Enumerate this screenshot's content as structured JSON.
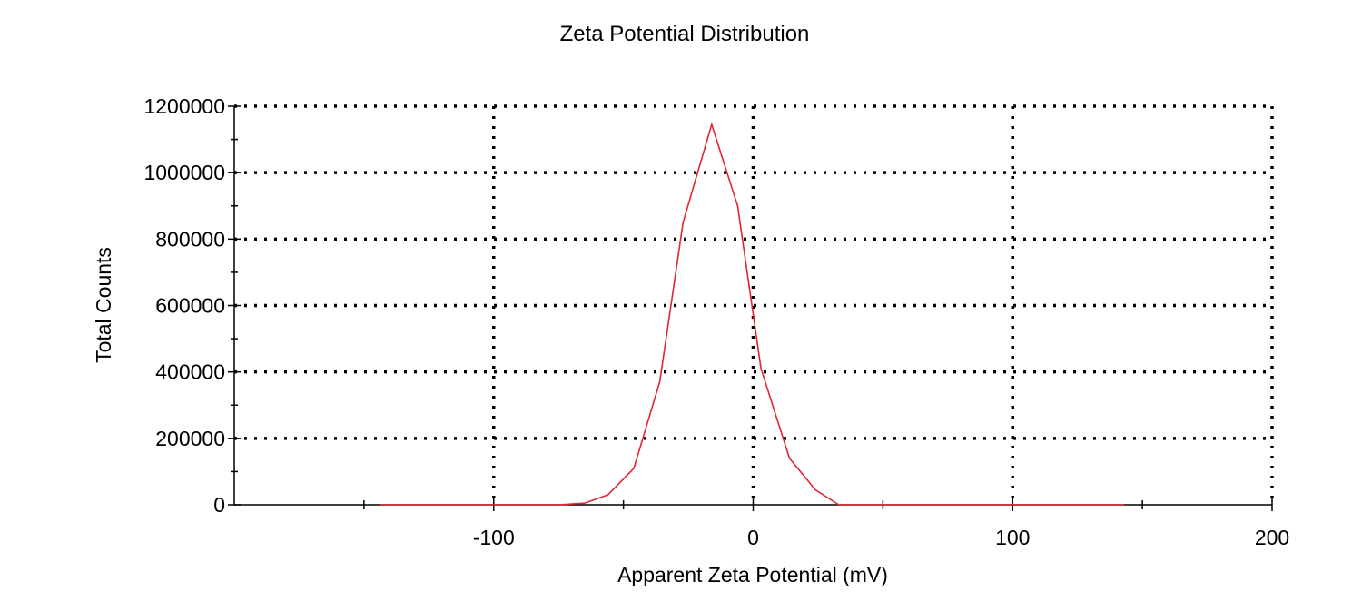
{
  "chart_data": {
    "type": "line",
    "title": "Zeta Potential Distribution",
    "xlabel": "Apparent Zeta Potential (mV)",
    "ylabel": "Total Counts",
    "xlim": [
      -200,
      200
    ],
    "ylim": [
      0,
      1200000
    ],
    "xticks": [
      -100,
      0,
      100,
      200
    ],
    "yticks": [
      0,
      200000,
      400000,
      600000,
      800000,
      1000000,
      1200000
    ],
    "xtick_labels": [
      "-100",
      "0",
      "100",
      "200"
    ],
    "ytick_labels": [
      "0",
      "200000",
      "400000",
      "600000",
      "800000",
      "1000000",
      "1200000"
    ],
    "grid": true,
    "series": [
      {
        "color": "#e0262f",
        "x": [
          -144,
          -130,
          -110,
          -90,
          -75,
          -65,
          -56,
          -46,
          -36,
          -27,
          -16,
          -6,
          3,
          14,
          24,
          33,
          50,
          70,
          100,
          143
        ],
        "y": [
          0,
          0,
          0,
          0,
          0,
          5000,
          30000,
          110000,
          370000,
          850000,
          1145000,
          900000,
          410000,
          140000,
          45000,
          0,
          0,
          0,
          0,
          0
        ]
      }
    ]
  }
}
